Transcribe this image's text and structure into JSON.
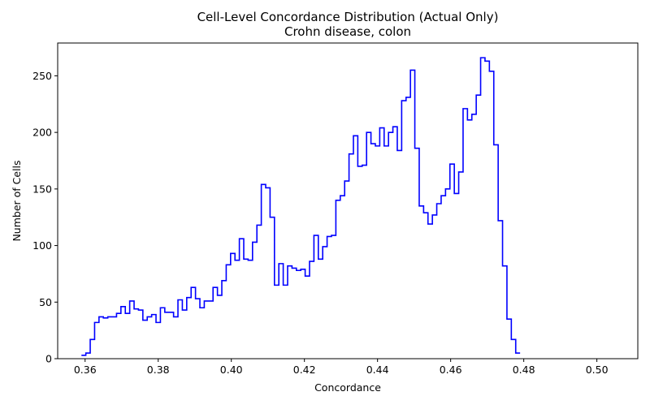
{
  "chart_data": {
    "type": "histogram-step",
    "title": "Cell-Level Concordance Distribution (Actual Only)",
    "subtitle": "Crohn disease, colon",
    "xlabel": "Concordance",
    "ylabel": "Number of Cells",
    "xlim": [
      0.3525,
      0.5112
    ],
    "ylim": [
      0,
      279
    ],
    "x_ticks": [
      "0.36",
      "0.38",
      "0.40",
      "0.42",
      "0.44",
      "0.46",
      "0.48",
      "0.50"
    ],
    "x_tick_values": [
      0.36,
      0.38,
      0.4,
      0.42,
      0.44,
      0.46,
      0.48,
      0.5
    ],
    "y_ticks": [
      "0",
      "50",
      "100",
      "150",
      "200",
      "250"
    ],
    "y_tick_values": [
      0,
      50,
      100,
      150,
      200,
      250
    ],
    "grid": false,
    "line_color": "#0000ff",
    "bin_start": 0.359,
    "bin_width": 0.0012,
    "counts": [
      3,
      5,
      17,
      32,
      37,
      36,
      37,
      37,
      40,
      46,
      40,
      51,
      44,
      43,
      34,
      37,
      39,
      32,
      45,
      41,
      41,
      37,
      52,
      43,
      54,
      63,
      53,
      45,
      51,
      51,
      63,
      56,
      69,
      83,
      93,
      87,
      106,
      88,
      87,
      103,
      118,
      154,
      151,
      125,
      65,
      84,
      65,
      82,
      80,
      78,
      79,
      73,
      86,
      109,
      88,
      99,
      108,
      109,
      140,
      144,
      157,
      181,
      197,
      170,
      171,
      200,
      190,
      188,
      204,
      188,
      200,
      205,
      184,
      228,
      231,
      255,
      186,
      135,
      129,
      119,
      127,
      137,
      144,
      150,
      172,
      146,
      165,
      221,
      211,
      216,
      233,
      266,
      263,
      254,
      189,
      122,
      82,
      35,
      17,
      5
    ]
  }
}
